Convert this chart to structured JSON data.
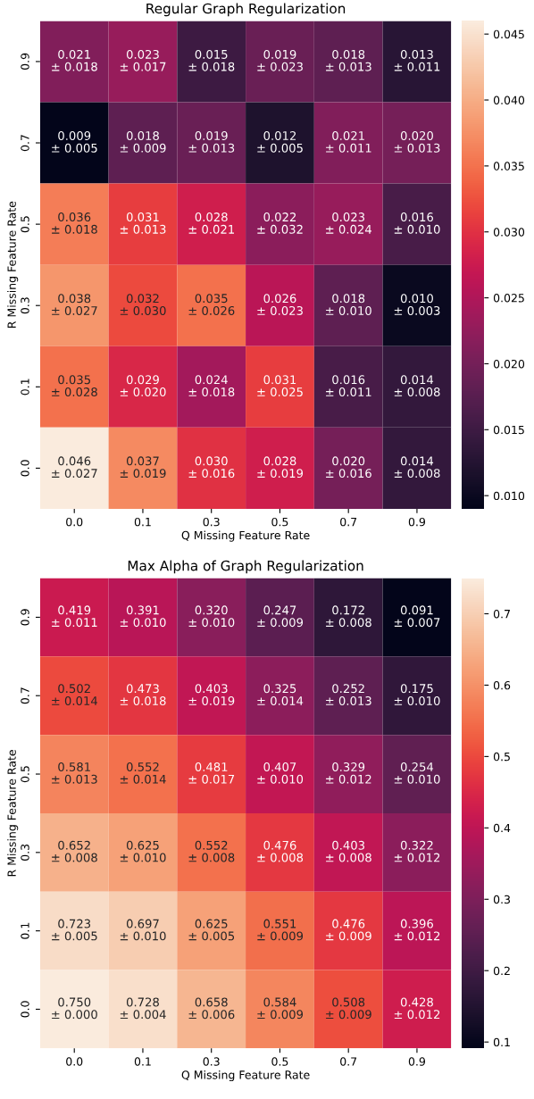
{
  "chart_data": [
    {
      "type": "heatmap",
      "title": "Regular Graph Regularization",
      "xlabel": "Q Missing Feature Rate",
      "ylabel": "R Missing Feature Rate",
      "categories": [
        "0.0",
        "0.1",
        "0.3",
        "0.5",
        "0.7",
        "0.9"
      ],
      "y_categories": [
        "0.9",
        "0.7",
        "0.5",
        "0.3",
        "0.1",
        "0.0"
      ],
      "cells": [
        [
          0.021,
          0.023,
          0.015,
          0.019,
          0.018,
          0.013
        ],
        [
          0.009,
          0.018,
          0.019,
          0.012,
          0.021,
          0.02
        ],
        [
          0.036,
          0.031,
          0.028,
          0.022,
          0.023,
          0.016
        ],
        [
          0.038,
          0.032,
          0.035,
          0.026,
          0.018,
          0.01
        ],
        [
          0.035,
          0.029,
          0.024,
          0.031,
          0.016,
          0.014
        ],
        [
          0.046,
          0.037,
          0.03,
          0.028,
          0.02,
          0.014
        ]
      ],
      "cell_labels": [
        [
          "0.021\n± 0.018",
          "0.023\n± 0.017",
          "0.015\n± 0.018",
          "0.019\n± 0.023",
          "0.018\n± 0.013",
          "0.013\n± 0.011"
        ],
        [
          "0.009\n± 0.005",
          "0.018\n± 0.009",
          "0.019\n± 0.013",
          "0.012\n± 0.005",
          "0.021\n± 0.011",
          "0.020\n± 0.013"
        ],
        [
          "0.036\n± 0.018",
          "0.031\n± 0.013",
          "0.028\n± 0.021",
          "0.022\n± 0.032",
          "0.023\n± 0.024",
          "0.016\n± 0.010"
        ],
        [
          "0.038\n± 0.027",
          "0.032\n± 0.030",
          "0.035\n± 0.026",
          "0.026\n± 0.023",
          "0.018\n± 0.010",
          "0.010\n± 0.003"
        ],
        [
          "0.035\n± 0.028",
          "0.029\n± 0.020",
          "0.024\n± 0.018",
          "0.031\n± 0.025",
          "0.016\n± 0.011",
          "0.014\n± 0.008"
        ],
        [
          "0.046\n± 0.027",
          "0.037\n± 0.019",
          "0.030\n± 0.016",
          "0.028\n± 0.019",
          "0.020\n± 0.016",
          "0.014\n± 0.008"
        ]
      ],
      "clim": [
        0.009,
        0.046
      ],
      "cticks": [
        {
          "value": 0.01,
          "label": "0.010"
        },
        {
          "value": 0.015,
          "label": "0.015"
        },
        {
          "value": 0.02,
          "label": "0.020"
        },
        {
          "value": 0.025,
          "label": "0.025"
        },
        {
          "value": 0.03,
          "label": "0.030"
        },
        {
          "value": 0.035,
          "label": "0.035"
        },
        {
          "value": 0.04,
          "label": "0.040"
        },
        {
          "value": 0.045,
          "label": "0.045"
        }
      ]
    },
    {
      "type": "heatmap",
      "title": "Max Alpha of Graph Regularization",
      "xlabel": "Q Missing Feature Rate",
      "ylabel": "R Missing Feature Rate",
      "categories": [
        "0.0",
        "0.1",
        "0.3",
        "0.5",
        "0.7",
        "0.9"
      ],
      "y_categories": [
        "0.9",
        "0.7",
        "0.5",
        "0.3",
        "0.1",
        "0.0"
      ],
      "cells": [
        [
          0.419,
          0.391,
          0.32,
          0.247,
          0.172,
          0.091
        ],
        [
          0.502,
          0.473,
          0.403,
          0.325,
          0.252,
          0.175
        ],
        [
          0.581,
          0.552,
          0.481,
          0.407,
          0.329,
          0.254
        ],
        [
          0.652,
          0.625,
          0.552,
          0.476,
          0.403,
          0.322
        ],
        [
          0.723,
          0.697,
          0.625,
          0.551,
          0.476,
          0.396
        ],
        [
          0.75,
          0.728,
          0.658,
          0.584,
          0.508,
          0.428
        ]
      ],
      "cell_labels": [
        [
          "0.419\n± 0.011",
          "0.391\n± 0.010",
          "0.320\n± 0.010",
          "0.247\n± 0.009",
          "0.172\n± 0.008",
          "0.091\n± 0.007"
        ],
        [
          "0.502\n± 0.014",
          "0.473\n± 0.018",
          "0.403\n± 0.019",
          "0.325\n± 0.014",
          "0.252\n± 0.013",
          "0.175\n± 0.010"
        ],
        [
          "0.581\n± 0.013",
          "0.552\n± 0.014",
          "0.481\n± 0.017",
          "0.407\n± 0.010",
          "0.329\n± 0.012",
          "0.254\n± 0.010"
        ],
        [
          "0.652\n± 0.008",
          "0.625\n± 0.010",
          "0.552\n± 0.008",
          "0.476\n± 0.008",
          "0.403\n± 0.008",
          "0.322\n± 0.012"
        ],
        [
          "0.723\n± 0.005",
          "0.697\n± 0.010",
          "0.625\n± 0.005",
          "0.551\n± 0.009",
          "0.476\n± 0.009",
          "0.396\n± 0.012"
        ],
        [
          "0.750\n± 0.000",
          "0.728\n± 0.004",
          "0.658\n± 0.006",
          "0.584\n± 0.009",
          "0.508\n± 0.009",
          "0.428\n± 0.012"
        ]
      ],
      "clim": [
        0.091,
        0.75
      ],
      "cticks": [
        0.1,
        0.2,
        0.3,
        0.4,
        0.5,
        0.6,
        0.7
      ]
    }
  ]
}
